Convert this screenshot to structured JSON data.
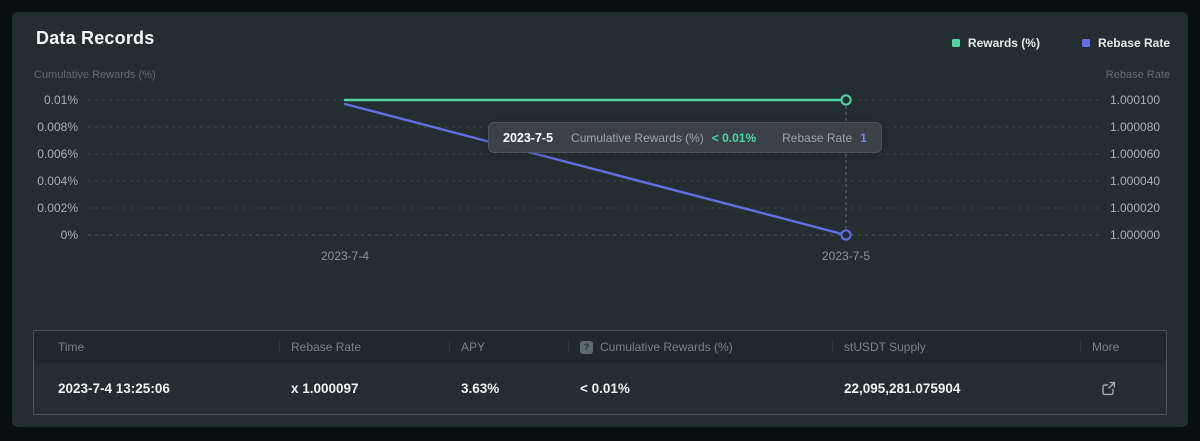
{
  "panel": {
    "title": "Data Records"
  },
  "legend": {
    "items": [
      {
        "label": "Rewards (%)",
        "color": "#4fd6a2"
      },
      {
        "label": "Rebase Rate",
        "color": "#626fe3"
      }
    ]
  },
  "chart_data": {
    "type": "line",
    "x": [
      "2023-7-4",
      "2023-7-5"
    ],
    "left_axis": {
      "label": "Cumulative Rewards (%)",
      "ticks": [
        "0.01%",
        "0.008%",
        "0.006%",
        "0.004%",
        "0.002%",
        "0%"
      ],
      "range": [
        0,
        0.01
      ]
    },
    "right_axis": {
      "label": "Rebase Rate",
      "ticks": [
        "1.000100",
        "1.000080",
        "1.000060",
        "1.000040",
        "1.000020",
        "1.000000"
      ],
      "range": [
        1.0,
        1.0001
      ]
    },
    "series": [
      {
        "name": "Rewards (%)",
        "axis": "left",
        "color": "#4fd6a2",
        "values": [
          0.01,
          0.01
        ],
        "display": [
          "< 0.01%",
          "< 0.01%"
        ]
      },
      {
        "name": "Rebase Rate",
        "axis": "right",
        "color": "#626fe3",
        "values": [
          1.000097,
          1.0
        ],
        "display": [
          "x 1.000097",
          "1"
        ]
      }
    ],
    "hover_index": 1,
    "grid": "dashed-horizontal",
    "legend_position": "top-right"
  },
  "tooltip": {
    "title": "2023-7-5",
    "items": [
      {
        "label": "Cumulative Rewards (%)",
        "value": "< 0.01%",
        "color": "#4fd6a2"
      },
      {
        "label": "Rebase Rate",
        "value": "1",
        "color": "#7b87e8"
      }
    ]
  },
  "table": {
    "headers": [
      {
        "label": "Time"
      },
      {
        "label": "Rebase Rate"
      },
      {
        "label": "APY"
      },
      {
        "label": "Cumulative Rewards (%)",
        "help_icon": "?"
      },
      {
        "label": "stUSDT Supply"
      },
      {
        "label": "More"
      }
    ],
    "rows": [
      {
        "time": "2023-7-4 13:25:06",
        "rebase_rate": "x 1.000097",
        "apy": "3.63%",
        "cumulative_rewards": "< 0.01%",
        "stusdt_supply": "22,095,281.075904"
      }
    ]
  }
}
